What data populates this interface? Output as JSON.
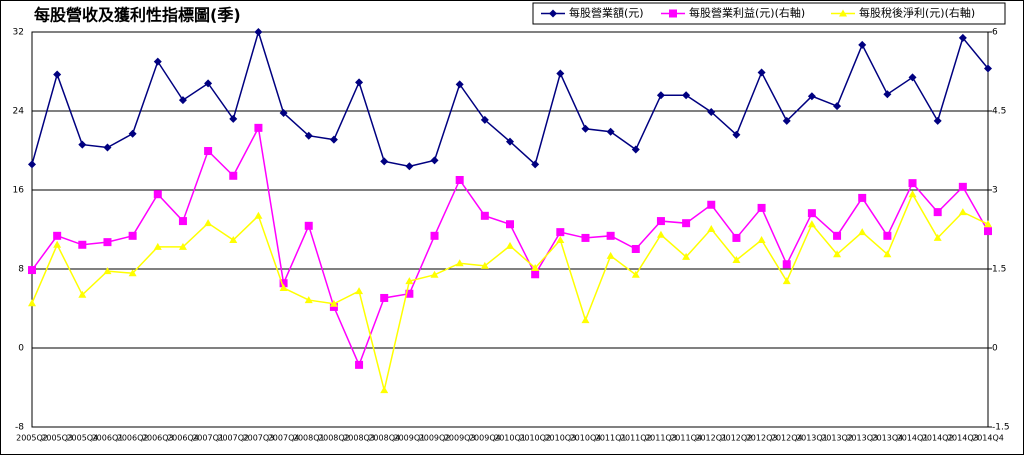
{
  "chart_data": {
    "type": "line",
    "title": "每股營收及獲利性指標圖(季)",
    "categories": [
      "2005Q2",
      "2005Q3",
      "2005Q4",
      "2006Q1",
      "2006Q2",
      "2006Q3",
      "2006Q4",
      "2007Q1",
      "2007Q2",
      "2007Q3",
      "2007Q4",
      "2008Q1",
      "2008Q2",
      "2008Q3",
      "2008Q4",
      "2009Q1",
      "2009Q2",
      "2009Q3",
      "2009Q4",
      "2010Q1",
      "2010Q2",
      "2010Q3",
      "2010Q4",
      "2011Q1",
      "2011Q2",
      "2011Q3",
      "2011Q4",
      "2012Q1",
      "2012Q2",
      "2012Q3",
      "2012Q4",
      "2013Q1",
      "2013Q2",
      "2013Q3",
      "2013Q4",
      "2014Q1",
      "2014Q2",
      "2014Q3",
      "2014Q4"
    ],
    "series": [
      {
        "name": "每股營業額(元)",
        "color": "#000080",
        "marker": "diamond",
        "axis": "y",
        "values": [
          18.6,
          27.7,
          20.6,
          20.3,
          21.7,
          29.0,
          25.1,
          26.8,
          23.2,
          32.0,
          23.8,
          21.5,
          21.1,
          26.9,
          18.9,
          18.4,
          19.0,
          26.7,
          23.1,
          20.9,
          18.6,
          27.8,
          22.2,
          21.9,
          20.1,
          25.6,
          25.6,
          23.9,
          21.6,
          27.9,
          23.0,
          25.5,
          24.5,
          30.7,
          25.7,
          27.4,
          23.0,
          31.4,
          28.3
        ]
      },
      {
        "name": "每股營業利益(元)(右軸)",
        "color": "#ff00ff",
        "marker": "square",
        "axis": "y2",
        "values": [
          1.48,
          2.13,
          1.96,
          2.01,
          2.13,
          2.92,
          2.41,
          3.74,
          3.27,
          4.18,
          1.23,
          2.32,
          0.78,
          -0.32,
          0.95,
          1.03,
          2.13,
          3.19,
          2.51,
          2.35,
          1.4,
          2.2,
          2.09,
          2.13,
          1.88,
          2.41,
          2.37,
          2.72,
          2.09,
          2.66,
          1.59,
          2.56,
          2.13,
          2.85,
          2.13,
          3.13,
          2.58,
          3.06,
          2.22
        ]
      },
      {
        "name": "每股稅後淨利(元)(右軸)",
        "color": "#ffff00",
        "marker": "triangle",
        "axis": "y2",
        "values": [
          0.85,
          1.96,
          1.01,
          1.46,
          1.42,
          1.92,
          1.92,
          2.37,
          2.05,
          2.51,
          1.14,
          0.91,
          0.84,
          1.08,
          -0.8,
          1.27,
          1.39,
          1.61,
          1.56,
          1.94,
          1.52,
          2.05,
          0.53,
          1.75,
          1.39,
          2.15,
          1.73,
          2.26,
          1.67,
          2.05,
          1.27,
          2.35,
          1.78,
          2.2,
          1.78,
          2.92,
          2.09,
          2.58,
          2.35
        ]
      }
    ],
    "ylim": [
      -8,
      32
    ],
    "yticks": [
      -8,
      0,
      8,
      16,
      24,
      32
    ],
    "y2lim": [
      -1.5,
      6
    ],
    "y2ticks": [
      -1.5,
      0,
      1.5,
      3,
      4.5,
      6
    ],
    "grid": true,
    "legend": "top-right"
  }
}
